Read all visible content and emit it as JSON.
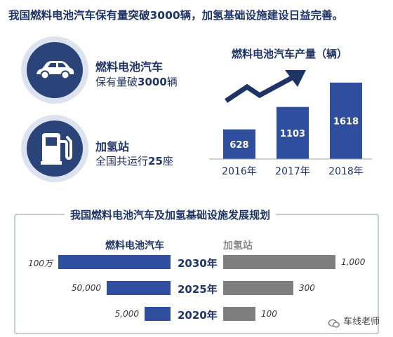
{
  "headline": "我国燃料电池汽车保有量突破3000辆，加氢基础设施建设日益完善。",
  "stats": [
    {
      "icon": "car-icon",
      "title": "燃料电池汽车",
      "sub_prefix": "保有量破",
      "sub_number": "3000",
      "sub_suffix": "辆"
    },
    {
      "icon": "fuel-pump-icon",
      "title": "加氢站",
      "sub_prefix": "全国共运行",
      "sub_number": "25",
      "sub_suffix": "座"
    }
  ],
  "colors": {
    "navy": "#2a4379",
    "bar_blue": "#2f4e9e",
    "gray_bar": "#7f7f7f",
    "text": "#1e3366"
  },
  "plan": {
    "title": "我国燃料电池汽车及加氢基础设施发展规划",
    "fcv_label": "燃料电池汽车",
    "h2_label": "加氢站"
  },
  "watermark": "车线老师",
  "chart_data": [
    {
      "type": "bar",
      "title": "燃料电池汽车产量（辆）",
      "categories": [
        "2016年",
        "2017年",
        "2018年"
      ],
      "values": [
        628,
        1103,
        1618
      ],
      "data_labels": [
        "628",
        "1103",
        "1618"
      ],
      "ylim": [
        0,
        1750
      ],
      "grid": false,
      "trend_arrow": true
    },
    {
      "type": "bar",
      "orientation": "horizontal-butterfly",
      "title": "我国燃料电池汽车及加氢基础设施发展规划",
      "categories": [
        "2030年",
        "2025年",
        "2020年"
      ],
      "series": [
        {
          "name": "燃料电池汽车",
          "values": [
            1000000,
            50000,
            5000
          ],
          "labels": [
            "100万",
            "50,000",
            "5,000"
          ],
          "color": "#2f4e9e"
        },
        {
          "name": "加氢站",
          "values": [
            1000,
            300,
            100
          ],
          "labels": [
            "1,000",
            "300",
            "100"
          ],
          "color": "#7f7f7f"
        }
      ]
    }
  ]
}
